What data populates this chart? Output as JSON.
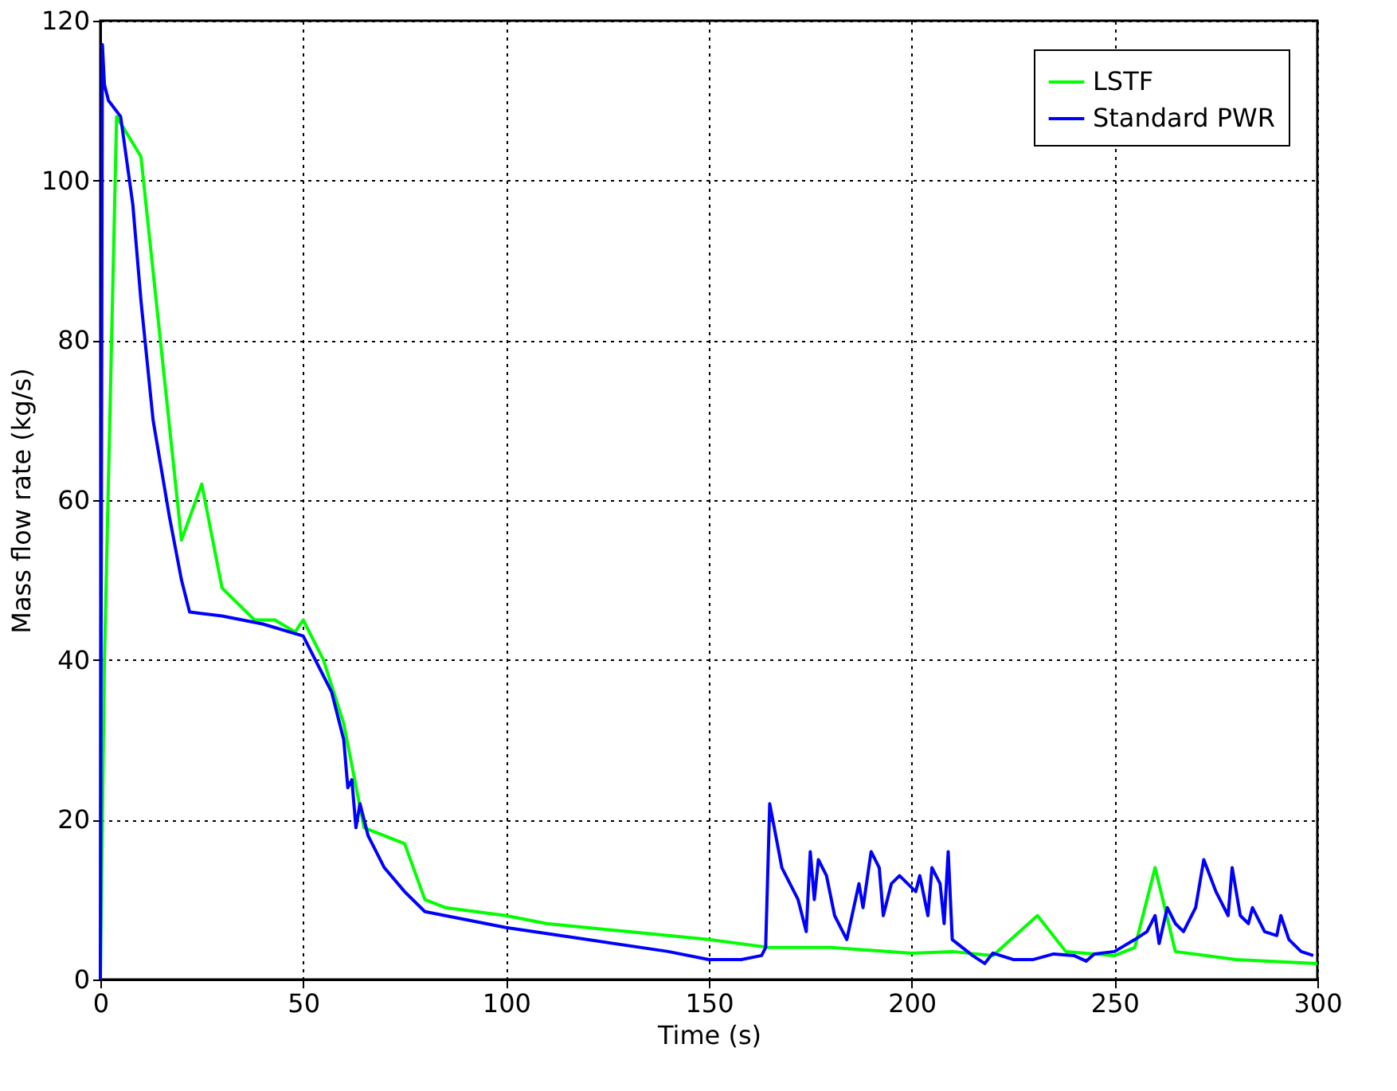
{
  "chart_data": {
    "type": "line",
    "xlabel": "Time (s)",
    "ylabel": "Mass flow rate (kg/s)",
    "xlim": [
      0,
      300
    ],
    "xticks": [
      0,
      50,
      100,
      150,
      200,
      250,
      300
    ],
    "ylim": [
      0,
      120
    ],
    "yticks": [
      0,
      20,
      40,
      60,
      80,
      100,
      120
    ],
    "grid": true,
    "legend": "top right",
    "line_style": "solid",
    "marker": "none",
    "series": [
      {
        "name": "LSTF",
        "color": "#00ff00",
        "x": [
          0,
          1,
          4,
          10,
          20,
          25,
          30,
          38,
          43,
          48,
          50,
          55,
          60,
          65,
          75,
          80,
          85,
          100,
          110,
          130,
          150,
          165,
          180,
          200,
          210,
          220,
          231,
          238,
          250,
          255,
          260,
          265,
          280,
          300
        ],
        "values": [
          0,
          40,
          108,
          103,
          55,
          62,
          49,
          45,
          45,
          43.5,
          45,
          40,
          32,
          19,
          17,
          10,
          9,
          8,
          7,
          6,
          5,
          4,
          4,
          3.3,
          3.5,
          3,
          8,
          3.5,
          3,
          4,
          14,
          3.5,
          2.5,
          2
        ]
      },
      {
        "name": "Standard PWR",
        "color": "#0000ff",
        "x": [
          0,
          0.5,
          1,
          2,
          5,
          8,
          10,
          13,
          17,
          20,
          22,
          30,
          40,
          50,
          55,
          57,
          60,
          61,
          62,
          63,
          64,
          66,
          70,
          75,
          80,
          90,
          100,
          120,
          140,
          150,
          158,
          163,
          164,
          165,
          168,
          170,
          172,
          174,
          175,
          176,
          177,
          179,
          181,
          184,
          187,
          188,
          190,
          192,
          193,
          195,
          197,
          199,
          201,
          202,
          204,
          205,
          207,
          208,
          209,
          210,
          215,
          218,
          220,
          225,
          230,
          235,
          240,
          243,
          245,
          250,
          255,
          258,
          260,
          261,
          263,
          265,
          267,
          270,
          272,
          275,
          278,
          279,
          281,
          283,
          284,
          287,
          290,
          291,
          293,
          296,
          299
        ],
        "values": [
          0,
          117,
          112,
          110,
          108,
          97,
          85,
          70,
          58,
          50,
          46,
          45.5,
          44.5,
          43,
          38,
          36,
          30,
          24,
          25,
          19,
          22,
          18,
          14,
          11,
          8.5,
          7.5,
          6.5,
          5,
          3.5,
          2.5,
          2.5,
          3,
          4,
          22,
          14,
          12,
          10,
          6,
          16,
          10,
          15,
          13,
          8,
          5,
          12,
          9,
          16,
          14,
          8,
          12,
          13,
          12,
          11,
          13,
          8,
          14,
          12,
          7,
          16,
          5,
          3,
          2,
          3.3,
          2.5,
          2.5,
          3.2,
          3,
          2.3,
          3.2,
          3.5,
          5,
          6,
          8,
          4.5,
          9,
          7,
          6,
          9,
          15,
          11,
          8,
          14,
          8,
          7,
          9,
          6,
          5.5,
          8,
          5,
          3.5,
          3
        ]
      }
    ]
  }
}
